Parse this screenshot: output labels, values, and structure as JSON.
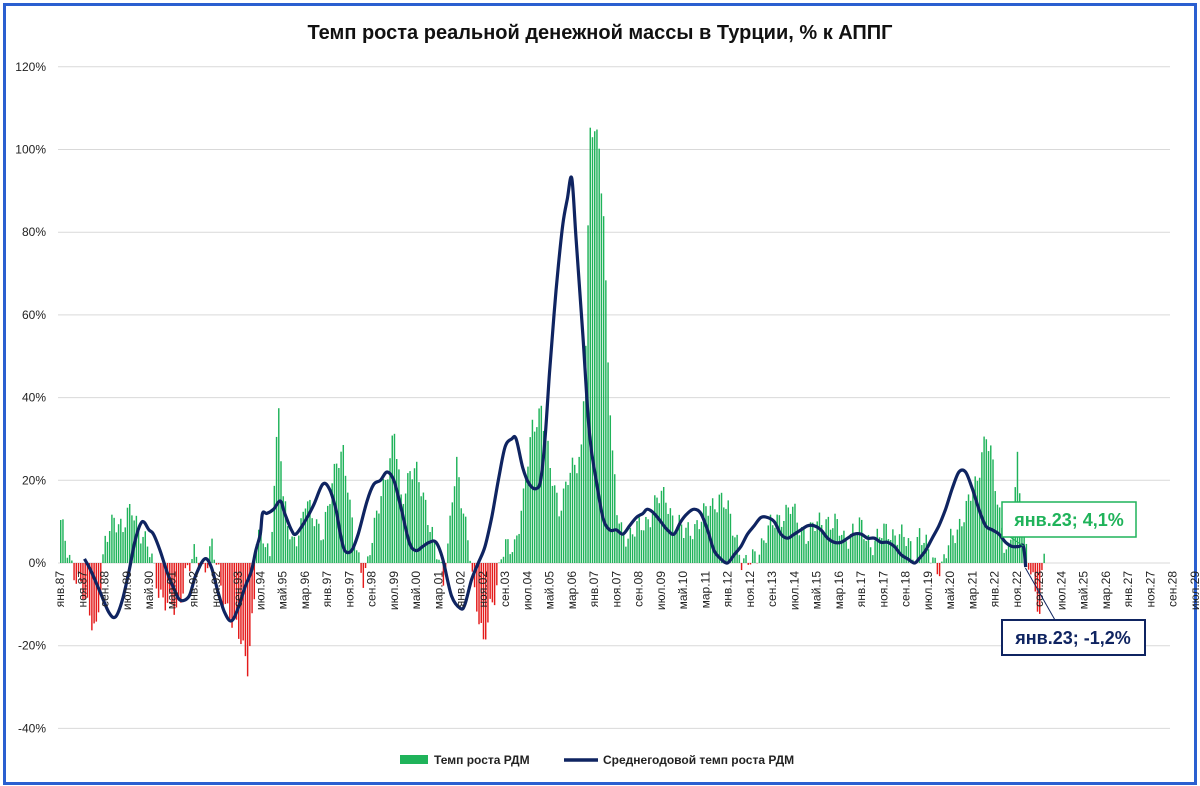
{
  "chart_data": {
    "type": "bar+line",
    "title": "Темп роста реальной денежной массы в Турции, % к АППГ",
    "ylim": [
      -40,
      120
    ],
    "yticks": [
      "-40%",
      "-20%",
      "0%",
      "20%",
      "40%",
      "60%",
      "80%",
      "100%",
      "120%"
    ],
    "ytick_values": [
      -40,
      -20,
      0,
      20,
      40,
      60,
      80,
      100,
      120
    ],
    "x_start": "янв.87",
    "x_tick_labels": [
      "янв.87",
      "ноя.87",
      "сен.88",
      "июл.89",
      "май.90",
      "мар.91",
      "янв.92",
      "ноя.92",
      "сен.93",
      "июл.94",
      "май.95",
      "мар.96",
      "янв.97",
      "ноя.97",
      "сен.98",
      "июл.99",
      "май.00",
      "мар.01",
      "янв.02",
      "ноя.02",
      "сен.03",
      "июл.04",
      "май.05",
      "мар.06",
      "янв.07",
      "ноя.07",
      "сен.08",
      "июл.09",
      "май.10",
      "мар.11",
      "янв.12",
      "ноя.12",
      "сен.13",
      "июл.14",
      "май.15",
      "мар.16",
      "янв.17",
      "ноя.17",
      "сен.18",
      "июл.19",
      "май.20",
      "мар.21",
      "янв.22",
      "ноя.22",
      "сен.23",
      "июл.24",
      "май.25",
      "мар.26",
      "янв.27",
      "ноя.27",
      "сен.28",
      "июл.29"
    ],
    "grid": true,
    "legend_position": "bottom",
    "series": [
      {
        "name": "Темп роста РДМ",
        "kind": "bar",
        "color_positive": "#1fb35a",
        "color_negative": "#e41b1b",
        "anchors": [
          [
            0,
            9
          ],
          [
            4,
            2
          ],
          [
            8,
            -5
          ],
          [
            12,
            -11
          ],
          [
            16,
            -15
          ],
          [
            20,
            4
          ],
          [
            24,
            12
          ],
          [
            28,
            8
          ],
          [
            32,
            13
          ],
          [
            36,
            8
          ],
          [
            40,
            2
          ],
          [
            44,
            -6
          ],
          [
            48,
            -10
          ],
          [
            52,
            -12
          ],
          [
            56,
            -2
          ],
          [
            60,
            1
          ],
          [
            64,
            -1
          ],
          [
            68,
            4
          ],
          [
            72,
            -6
          ],
          [
            76,
            -12
          ],
          [
            80,
            -18
          ],
          [
            84,
            -24
          ],
          [
            87,
            -8
          ],
          [
            88,
            6
          ],
          [
            92,
            5
          ],
          [
            94,
            2
          ],
          [
            96,
            20
          ],
          [
            98,
            37
          ],
          [
            100,
            14
          ],
          [
            102,
            10
          ],
          [
            104,
            6
          ],
          [
            108,
            8
          ],
          [
            110,
            14
          ],
          [
            114,
            12
          ],
          [
            118,
            6
          ],
          [
            120,
            12
          ],
          [
            124,
            26
          ],
          [
            127,
            27
          ],
          [
            130,
            12
          ],
          [
            133,
            4
          ],
          [
            136,
            -3
          ],
          [
            138,
            -1
          ],
          [
            140,
            5
          ],
          [
            144,
            18
          ],
          [
            148,
            24
          ],
          [
            150,
            31
          ],
          [
            153,
            16
          ],
          [
            157,
            22
          ],
          [
            160,
            21
          ],
          [
            164,
            15
          ],
          [
            168,
            4
          ],
          [
            172,
            -5
          ],
          [
            174,
            5
          ],
          [
            176,
            17
          ],
          [
            178,
            23
          ],
          [
            180,
            14
          ],
          [
            182,
            9
          ],
          [
            184,
            4
          ],
          [
            186,
            -7
          ],
          [
            188,
            -14
          ],
          [
            190,
            -21
          ],
          [
            193,
            -10
          ],
          [
            196,
            -5
          ],
          [
            198,
            1
          ],
          [
            200,
            3
          ],
          [
            204,
            5
          ],
          [
            208,
            15
          ],
          [
            212,
            33
          ],
          [
            216,
            38
          ],
          [
            220,
            22
          ],
          [
            224,
            14
          ],
          [
            228,
            20
          ],
          [
            232,
            24
          ],
          [
            234,
            28
          ],
          [
            236,
            55
          ],
          [
            237,
            80
          ],
          [
            238,
            103
          ],
          [
            240,
            104
          ],
          [
            242,
            100
          ],
          [
            244,
            85
          ],
          [
            246,
            50
          ],
          [
            248,
            25
          ],
          [
            250,
            12
          ],
          [
            252,
            8
          ],
          [
            256,
            7
          ],
          [
            260,
            8
          ],
          [
            264,
            11
          ],
          [
            268,
            15
          ],
          [
            272,
            16
          ],
          [
            276,
            10
          ],
          [
            280,
            7
          ],
          [
            284,
            9
          ],
          [
            288,
            10
          ],
          [
            292,
            14
          ],
          [
            296,
            16
          ],
          [
            300,
            12
          ],
          [
            304,
            6
          ],
          [
            306,
            1
          ],
          [
            308,
            -1
          ],
          [
            310,
            0
          ],
          [
            312,
            2
          ],
          [
            316,
            6
          ],
          [
            320,
            9
          ],
          [
            324,
            12
          ],
          [
            328,
            13
          ],
          [
            332,
            9
          ],
          [
            336,
            7
          ],
          [
            340,
            9
          ],
          [
            344,
            11
          ],
          [
            348,
            9
          ],
          [
            352,
            6
          ],
          [
            356,
            8
          ],
          [
            360,
            8
          ],
          [
            364,
            5
          ],
          [
            368,
            6
          ],
          [
            372,
            8
          ],
          [
            376,
            7
          ],
          [
            380,
            5
          ],
          [
            384,
            3
          ],
          [
            386,
            8
          ],
          [
            388,
            4
          ],
          [
            392,
            1
          ],
          [
            396,
            -1
          ],
          [
            400,
            5
          ],
          [
            404,
            10
          ],
          [
            408,
            14
          ],
          [
            412,
            20
          ],
          [
            414,
            28
          ],
          [
            416,
            31
          ],
          [
            418,
            26
          ],
          [
            420,
            18
          ],
          [
            422,
            12
          ],
          [
            424,
            6
          ],
          [
            426,
            3
          ],
          [
            428,
            8
          ],
          [
            430,
            24
          ],
          [
            432,
            12
          ],
          [
            434,
            5
          ],
          [
            436,
            -2
          ],
          [
            438,
            -8
          ],
          [
            440,
            -14
          ],
          [
            441,
            -4
          ],
          [
            442,
            4
          ]
        ]
      },
      {
        "name": "Среднегодовой темп роста РДМ",
        "kind": "line",
        "color": "#0f2461",
        "anchors": [
          [
            11,
            1
          ],
          [
            14,
            -2
          ],
          [
            18,
            -7
          ],
          [
            22,
            -12
          ],
          [
            25,
            -13
          ],
          [
            28,
            -9
          ],
          [
            31,
            -2
          ],
          [
            34,
            6
          ],
          [
            37,
            10
          ],
          [
            40,
            8
          ],
          [
            42,
            7
          ],
          [
            45,
            3
          ],
          [
            48,
            -2
          ],
          [
            51,
            -6
          ],
          [
            54,
            -9
          ],
          [
            58,
            -8
          ],
          [
            61,
            -3
          ],
          [
            65,
            1
          ],
          [
            68,
            -1
          ],
          [
            71,
            -7
          ],
          [
            74,
            -12
          ],
          [
            77,
            -14
          ],
          [
            80,
            -11
          ],
          [
            83,
            -6
          ],
          [
            86,
            -2
          ],
          [
            88,
            3
          ],
          [
            90,
            7
          ],
          [
            91,
            12
          ],
          [
            93,
            12
          ],
          [
            96,
            13
          ],
          [
            99,
            15
          ],
          [
            101,
            12
          ],
          [
            104,
            8
          ],
          [
            106,
            7
          ],
          [
            110,
            10
          ],
          [
            114,
            14
          ],
          [
            118,
            19
          ],
          [
            121,
            18
          ],
          [
            124,
            13
          ],
          [
            126,
            7
          ],
          [
            128,
            3
          ],
          [
            131,
            3
          ],
          [
            134,
            7
          ],
          [
            138,
            15
          ],
          [
            141,
            19
          ],
          [
            144,
            20
          ],
          [
            147,
            22
          ],
          [
            150,
            20
          ],
          [
            153,
            14
          ],
          [
            157,
            5
          ],
          [
            160,
            3
          ],
          [
            163,
            4
          ],
          [
            166,
            5
          ],
          [
            169,
            5
          ],
          [
            172,
            1
          ],
          [
            176,
            -8
          ],
          [
            180,
            -11
          ],
          [
            182,
            -10
          ],
          [
            185,
            -4
          ],
          [
            188,
            0
          ],
          [
            191,
            4
          ],
          [
            194,
            11
          ],
          [
            197,
            20
          ],
          [
            200,
            28
          ],
          [
            203,
            30
          ],
          [
            205,
            30
          ],
          [
            208,
            23
          ],
          [
            211,
            19
          ],
          [
            214,
            18
          ],
          [
            216,
            20
          ],
          [
            218,
            30
          ],
          [
            220,
            46
          ],
          [
            222,
            60
          ],
          [
            224,
            72
          ],
          [
            226,
            82
          ],
          [
            228,
            88
          ],
          [
            230,
            93
          ],
          [
            232,
            78
          ],
          [
            235,
            55
          ],
          [
            238,
            31
          ],
          [
            241,
            20
          ],
          [
            244,
            11
          ],
          [
            247,
            8
          ],
          [
            250,
            8
          ],
          [
            253,
            7
          ],
          [
            256,
            9
          ],
          [
            259,
            11
          ],
          [
            262,
            12
          ],
          [
            264,
            13
          ],
          [
            267,
            12
          ],
          [
            270,
            10
          ],
          [
            273,
            8
          ],
          [
            276,
            7
          ],
          [
            279,
            10
          ],
          [
            282,
            12
          ],
          [
            285,
            13
          ],
          [
            288,
            12
          ],
          [
            291,
            8
          ],
          [
            294,
            3
          ],
          [
            297,
            1
          ],
          [
            300,
            0
          ],
          [
            303,
            2
          ],
          [
            306,
            4
          ],
          [
            309,
            7
          ],
          [
            312,
            9
          ],
          [
            315,
            11
          ],
          [
            318,
            11
          ],
          [
            321,
            10
          ],
          [
            324,
            7
          ],
          [
            327,
            6
          ],
          [
            330,
            7
          ],
          [
            333,
            8
          ],
          [
            336,
            9
          ],
          [
            339,
            9
          ],
          [
            342,
            8
          ],
          [
            345,
            6
          ],
          [
            348,
            5
          ],
          [
            351,
            5
          ],
          [
            354,
            6
          ],
          [
            357,
            7
          ],
          [
            360,
            7
          ],
          [
            363,
            6
          ],
          [
            366,
            6
          ],
          [
            369,
            5
          ],
          [
            372,
            5
          ],
          [
            375,
            4
          ],
          [
            378,
            2
          ],
          [
            381,
            1
          ],
          [
            384,
            0
          ],
          [
            386,
            1
          ],
          [
            389,
            3
          ],
          [
            392,
            6
          ],
          [
            395,
            9
          ],
          [
            398,
            13
          ],
          [
            401,
            18
          ],
          [
            404,
            22
          ],
          [
            407,
            22
          ],
          [
            410,
            18
          ],
          [
            413,
            13
          ],
          [
            416,
            9
          ],
          [
            419,
            8
          ],
          [
            422,
            7
          ],
          [
            425,
            5
          ],
          [
            428,
            4
          ],
          [
            431,
            4
          ],
          [
            433,
            4
          ],
          [
            434,
            -1
          ]
        ]
      }
    ],
    "annotations": [
      {
        "text": "янв.23; 4,1%",
        "color": "#1fb35a",
        "value": 4.1
      },
      {
        "text": "янв.23; -1,2%",
        "color": "#0f2461",
        "value": -1.2
      }
    ]
  }
}
